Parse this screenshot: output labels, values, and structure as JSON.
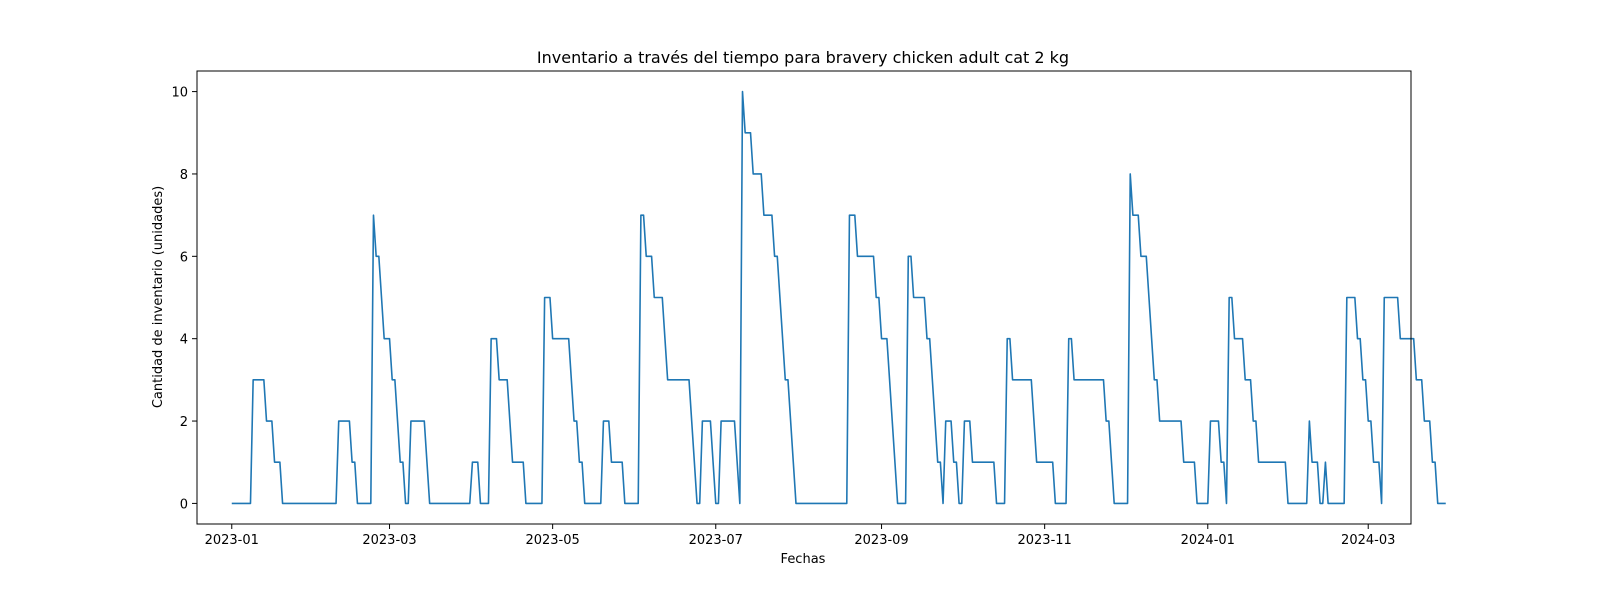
{
  "chart_data": {
    "type": "line",
    "title": "Inventario a través del tiempo para bravery chicken adult cat 2 kg",
    "xlabel": "Fechas",
    "ylabel": "Cantidad de inventario (unidades)",
    "x_start": "2023-01-01",
    "x_end": "2024-03-04",
    "xlim": [
      "2022-12-19",
      "2024-03-17"
    ],
    "ylim": [
      -0.5,
      10.5
    ],
    "x_ticks": [
      "2023-01",
      "2023-03",
      "2023-05",
      "2023-07",
      "2023-09",
      "2023-11",
      "2024-01",
      "2024-03"
    ],
    "y_ticks": [
      0,
      2,
      4,
      6,
      8,
      10
    ],
    "grid": false,
    "legend": "none",
    "series_color": "#1f77b4",
    "series": [
      {
        "values": [
          0,
          0,
          0,
          0,
          0,
          0,
          0,
          0,
          3,
          3,
          3,
          3,
          3,
          2,
          2,
          2,
          1,
          1,
          1,
          0,
          0,
          0,
          0,
          0,
          0,
          0,
          0,
          0,
          0,
          0,
          0,
          0,
          0,
          0,
          0,
          0,
          0,
          0,
          0,
          0,
          2,
          2,
          2,
          2,
          2,
          1,
          1,
          0,
          0,
          0,
          0,
          0,
          0,
          7,
          6,
          6,
          5,
          4,
          4,
          4,
          3,
          3,
          2,
          1,
          1,
          0,
          0,
          2,
          2,
          2,
          2,
          2,
          2,
          1,
          0,
          0,
          0,
          0,
          0,
          0,
          0,
          0,
          0,
          0,
          0,
          0,
          0,
          0,
          0,
          0,
          1,
          1,
          1,
          0,
          0,
          0,
          0,
          4,
          4,
          4,
          3,
          3,
          3,
          3,
          2,
          1,
          1,
          1,
          1,
          1,
          0,
          0,
          0,
          0,
          0,
          0,
          0,
          5,
          5,
          5,
          4,
          4,
          4,
          4,
          4,
          4,
          4,
          3,
          2,
          2,
          1,
          1,
          0,
          0,
          0,
          0,
          0,
          0,
          0,
          2,
          2,
          2,
          1,
          1,
          1,
          1,
          1,
          0,
          0,
          0,
          0,
          0,
          0,
          7,
          7,
          6,
          6,
          6,
          5,
          5,
          5,
          5,
          4,
          3,
          3,
          3,
          3,
          3,
          3,
          3,
          3,
          3,
          2,
          1,
          0,
          0,
          2,
          2,
          2,
          2,
          1,
          0,
          0,
          2,
          2,
          2,
          2,
          2,
          2,
          1,
          0,
          10,
          9,
          9,
          9,
          8,
          8,
          8,
          8,
          7,
          7,
          7,
          7,
          6,
          6,
          5,
          4,
          3,
          3,
          2,
          1,
          0,
          0,
          0,
          0,
          0,
          0,
          0,
          0,
          0,
          0,
          0,
          0,
          0,
          0,
          0,
          0,
          0,
          0,
          0,
          0,
          7,
          7,
          7,
          6,
          6,
          6,
          6,
          6,
          6,
          6,
          5,
          5,
          4,
          4,
          4,
          3,
          2,
          1,
          0,
          0,
          0,
          0,
          6,
          6,
          5,
          5,
          5,
          5,
          5,
          4,
          4,
          3,
          2,
          1,
          1,
          0,
          2,
          2,
          2,
          1,
          1,
          0,
          0,
          2,
          2,
          2,
          1,
          1,
          1,
          1,
          1,
          1,
          1,
          1,
          1,
          0,
          0,
          0,
          0,
          4,
          4,
          3,
          3,
          3,
          3,
          3,
          3,
          3,
          3,
          2,
          1,
          1,
          1,
          1,
          1,
          1,
          1,
          0,
          0,
          0,
          0,
          0,
          4,
          4,
          3,
          3,
          3,
          3,
          3,
          3,
          3,
          3,
          3,
          3,
          3,
          3,
          2,
          2,
          1,
          0,
          0,
          0,
          0,
          0,
          0,
          8,
          7,
          7,
          7,
          6,
          6,
          6,
          5,
          4,
          3,
          3,
          2,
          2,
          2,
          2,
          2,
          2,
          2,
          2,
          2,
          1,
          1,
          1,
          1,
          1,
          0,
          0,
          0,
          0,
          0,
          2,
          2,
          2,
          2,
          1,
          1,
          0,
          5,
          5,
          4,
          4,
          4,
          4,
          3,
          3,
          3,
          2,
          2,
          1,
          1,
          1,
          1,
          1,
          1,
          1,
          1,
          1,
          1,
          1,
          0,
          0,
          0,
          0,
          0,
          0,
          0,
          0,
          2,
          1,
          1,
          1,
          0,
          0,
          1,
          0,
          0,
          0,
          0,
          0,
          0,
          0,
          5,
          5,
          5,
          5,
          4,
          4,
          3,
          3,
          2,
          2,
          1,
          1,
          1,
          0,
          5,
          5,
          5,
          5,
          5,
          5,
          4,
          4,
          4,
          4,
          4,
          4,
          3,
          3,
          3,
          2,
          2,
          2,
          1,
          1,
          0,
          0,
          0,
          0
        ]
      }
    ]
  }
}
